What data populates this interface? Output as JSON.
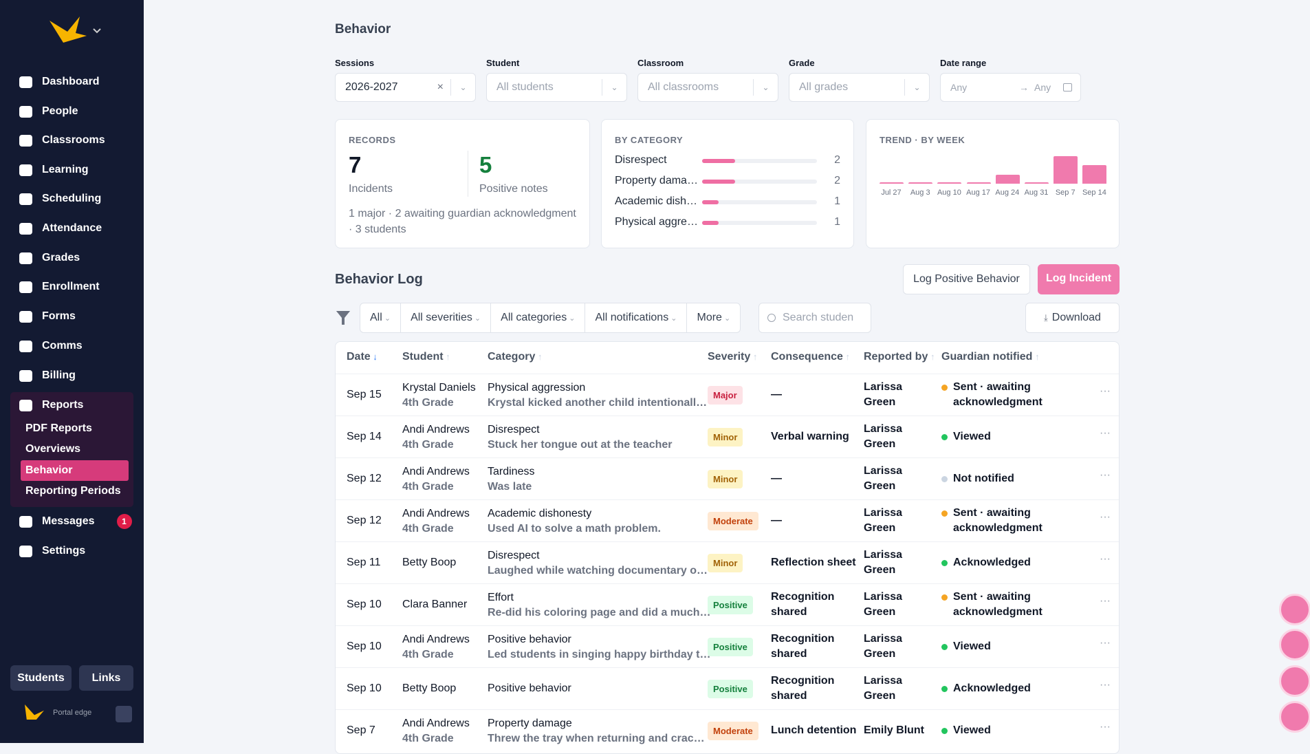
{
  "sidebar": {
    "nav": [
      "Dashboard",
      "People",
      "Classrooms",
      "Learning",
      "Scheduling",
      "Attendance",
      "Grades",
      "Enrollment",
      "Forms",
      "Comms",
      "Billing"
    ],
    "reports": "Reports",
    "report_links": [
      {
        "label": "PDF Reports"
      },
      {
        "label": "Overviews"
      },
      {
        "label": "Behavior",
        "active": true
      },
      {
        "label": "Reporting Periods"
      }
    ],
    "messages": "Messages",
    "messages_badge": 1,
    "settings": "Settings",
    "buttons": [
      "Students",
      "Links"
    ],
    "brand": "Portal edge"
  },
  "header": {
    "title": "Behavior"
  },
  "filters": [
    {
      "label": "Sessions",
      "value": "2026-2027"
    },
    {
      "label": "Student",
      "placeholder": "All students"
    },
    {
      "label": "Classroom",
      "placeholder": "All classrooms"
    },
    {
      "label": "Grade",
      "placeholder": "All grades"
    },
    {
      "label": "Date range",
      "from": "Any",
      "to": "Any"
    }
  ],
  "records": {
    "title": "RECORDS",
    "incidents": 7,
    "incidents_label": "Incidents",
    "positive": 5,
    "positive_label": "Positive notes",
    "summary": "1 major · 2 awaiting guardian acknowledgment · 3 students"
  },
  "by_category": {
    "title": "BY CATEGORY",
    "categories": [
      "Disrespect",
      "Property dama…",
      "Academic dish…",
      "Physical aggre…"
    ],
    "values": [
      2,
      2,
      1,
      1
    ],
    "color": "#ef6ea3"
  },
  "chart_data": {
    "type": "bar",
    "title": "TREND · BY WEEK",
    "categories": [
      "Jul 27",
      "Aug 3",
      "Aug 10",
      "Aug 17",
      "Aug 24",
      "Aug 31",
      "Sep 7",
      "Sep 14"
    ],
    "values": [
      0,
      0,
      0,
      0,
      1,
      0,
      3,
      2
    ],
    "color": "#f07aad"
  },
  "log": {
    "title": "Behavior Log",
    "buttons": [
      "Log Positive Behavior",
      "Log Incident"
    ],
    "filters": [
      "All",
      "All severities",
      "All categories",
      "All notifications",
      "More"
    ],
    "search_placeholder": "Search studen",
    "download": "Download"
  },
  "table": {
    "columns": [
      "Date",
      "Student",
      "Category",
      "Severity",
      "Consequence",
      "Reported by",
      "Guardian notified"
    ],
    "rows": [
      {
        "date": "Sep 15",
        "student": "Krystal Daniels",
        "grade": "4th Grade",
        "category": "Physical aggression",
        "note": "Krystal kicked another child intentionall…",
        "severity": "Major",
        "consequence": "—",
        "reporter": "Larissa Green",
        "status": "Sent · awaiting acknowledgment",
        "status_color": "#f5a524"
      },
      {
        "date": "Sep 14",
        "student": "Andi Andrews",
        "grade": "4th Grade",
        "category": "Disrespect",
        "note": "Stuck her tongue out at the teacher",
        "severity": "Minor",
        "consequence": "Verbal warning",
        "reporter": "Larissa Green",
        "status": "Viewed",
        "status_color": "#22c55e"
      },
      {
        "date": "Sep 12",
        "student": "Andi Andrews",
        "grade": "4th Grade",
        "category": "Tardiness",
        "note": "Was late",
        "severity": "Minor",
        "consequence": "—",
        "reporter": "Larissa Green",
        "status": "Not notified",
        "status_color": "#cbd5e1"
      },
      {
        "date": "Sep 12",
        "student": "Andi Andrews",
        "grade": "4th Grade",
        "category": "Academic dishonesty",
        "note": "Used AI to solve a math problem.",
        "severity": "Moderate",
        "consequence": "—",
        "reporter": "Larissa Green",
        "status": "Sent · awaiting acknowledgment",
        "status_color": "#f5a524"
      },
      {
        "date": "Sep 11",
        "student": "Betty Boop",
        "category": "Disrespect",
        "note": "Laughed while watching documentary o…",
        "severity": "Minor",
        "consequence": "Reflection sheet",
        "reporter": "Larissa Green",
        "status": "Acknowledged",
        "status_color": "#22c55e"
      },
      {
        "date": "Sep 10",
        "student": "Clara Banner",
        "category": "Effort",
        "note": "Re-did his coloring page and did a much…",
        "severity": "Positive",
        "consequence": "Recognition shared",
        "reporter": "Larissa Green",
        "status": "Sent · awaiting acknowledgment",
        "status_color": "#f5a524"
      },
      {
        "date": "Sep 10",
        "student": "Andi Andrews",
        "grade": "4th Grade",
        "category": "Positive behavior",
        "note": "Led students in singing happy birthday t…",
        "severity": "Positive",
        "consequence": "Recognition shared",
        "reporter": "Larissa Green",
        "status": "Viewed",
        "status_color": "#22c55e"
      },
      {
        "date": "Sep 10",
        "student": "Betty Boop",
        "category": "Positive behavior",
        "severity": "Positive",
        "consequence": "Recognition shared",
        "reporter": "Larissa Green",
        "status": "Acknowledged",
        "status_color": "#22c55e"
      },
      {
        "date": "Sep 7",
        "student": "Andi Andrews",
        "grade": "4th Grade",
        "category": "Property damage",
        "note": "Threw the tray when returning and crac…",
        "severity": "Moderate",
        "consequence": "Lunch detention",
        "reporter": "Emily Blunt",
        "status": "Viewed",
        "status_color": "#22c55e"
      }
    ]
  }
}
